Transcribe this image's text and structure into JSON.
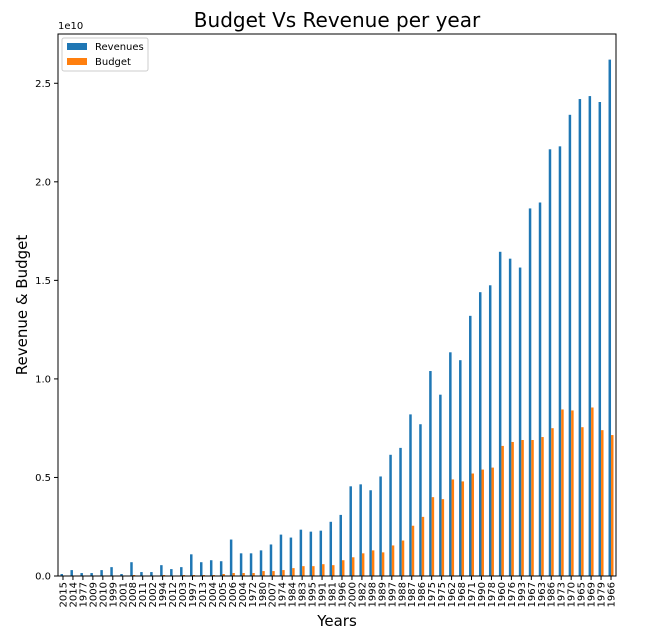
{
  "chart_data": {
    "type": "bar",
    "title": "Budget Vs Revenue per year",
    "xlabel": "Years",
    "ylabel": "Revenue & Budget",
    "y_offset_label": "1e10",
    "ylim": [
      0,
      2.75
    ],
    "y_ticks": [
      0.0,
      0.5,
      1.0,
      1.5,
      2.0,
      2.5
    ],
    "y_tick_labels": [
      "0.0",
      "0.5",
      "1.0",
      "1.5",
      "2.0",
      "2.5"
    ],
    "grid": false,
    "legend_position": "top-left",
    "colors": {
      "Revenues": "#1f77b4",
      "Budget": "#ff7f0e"
    },
    "categories": [
      "2015",
      "2014",
      "1977",
      "2009",
      "2010",
      "1999",
      "2001",
      "2008",
      "2011",
      "2002",
      "1994",
      "2012",
      "2003",
      "1997",
      "2013",
      "2004",
      "2005",
      "2006",
      "2004",
      "1972",
      "1980",
      "2007",
      "1974",
      "1984",
      "1983",
      "1995",
      "1991",
      "1981",
      "1996",
      "2000",
      "1982",
      "1998",
      "1989",
      "1997",
      "1988",
      "1987",
      "1986",
      "1975",
      "1975",
      "1962",
      "1968",
      "1971",
      "1990",
      "1978",
      "1960",
      "1976",
      "1993",
      "1967",
      "1963",
      "1986",
      "1973",
      "1970",
      "1965",
      "1969",
      "1979",
      "1966"
    ],
    "series": [
      {
        "name": "Revenues",
        "values": [
          0.01,
          0.03,
          0.015,
          0.015,
          0.03,
          0.045,
          0.01,
          0.07,
          0.02,
          0.02,
          0.055,
          0.035,
          0.045,
          0.11,
          0.07,
          0.08,
          0.075,
          0.185,
          0.115,
          0.115,
          0.13,
          0.16,
          0.21,
          0.195,
          0.235,
          0.225,
          0.23,
          0.275,
          0.31,
          0.455,
          0.465,
          0.435,
          0.505,
          0.615,
          0.65,
          0.82,
          0.77,
          1.04,
          0.92,
          1.135,
          1.095,
          1.32,
          1.44,
          1.475,
          1.645,
          1.61,
          1.565,
          1.865,
          1.895,
          2.165,
          2.18,
          2.34,
          2.42,
          2.435,
          2.405,
          2.62
        ]
      },
      {
        "name": "Budget",
        "values": [
          0.0,
          0.0,
          0.0,
          0.0,
          0.0,
          0.0,
          0.0,
          0.005,
          0.0,
          0.0,
          0.005,
          0.0,
          0.005,
          0.005,
          0.005,
          0.005,
          0.01,
          0.015,
          0.015,
          0.015,
          0.025,
          0.025,
          0.03,
          0.04,
          0.05,
          0.05,
          0.06,
          0.055,
          0.08,
          0.095,
          0.115,
          0.13,
          0.12,
          0.155,
          0.18,
          0.255,
          0.3,
          0.4,
          0.39,
          0.49,
          0.48,
          0.52,
          0.54,
          0.55,
          0.66,
          0.68,
          0.69,
          0.69,
          0.705,
          0.75,
          0.845,
          0.84,
          0.755,
          0.855,
          0.74,
          0.715
        ]
      }
    ]
  }
}
